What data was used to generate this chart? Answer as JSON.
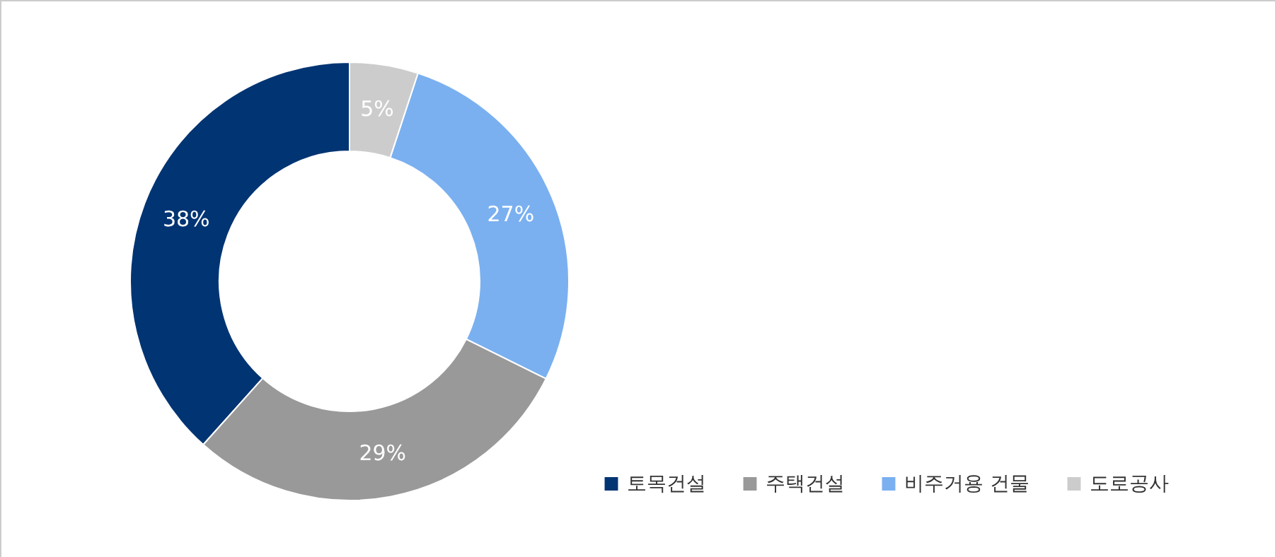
{
  "chart_data": {
    "type": "donut",
    "categories": [
      "토목건설",
      "주택건설",
      "비주거용 건물",
      "도로공사"
    ],
    "values": [
      38,
      29,
      27,
      5
    ],
    "colors": [
      "#003473",
      "#999999",
      "#7ab0f0",
      "#cccccc"
    ],
    "value_labels": [
      "38%",
      "29%",
      "27%",
      "5%"
    ],
    "legend": "bottom right"
  }
}
